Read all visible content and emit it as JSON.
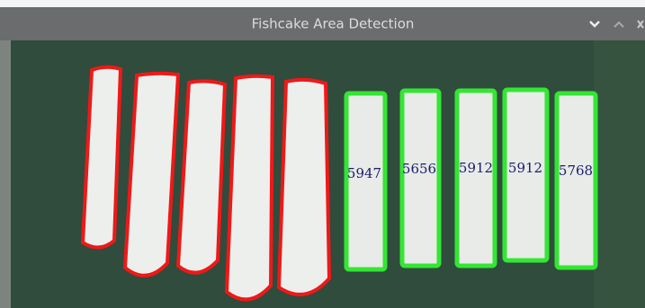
{
  "window": {
    "title": "Fishcake Area Detection"
  },
  "detections": [
    {
      "label": "5947"
    },
    {
      "label": "5656"
    },
    {
      "label": "5912"
    },
    {
      "label": "5912"
    },
    {
      "label": "5768"
    }
  ]
}
